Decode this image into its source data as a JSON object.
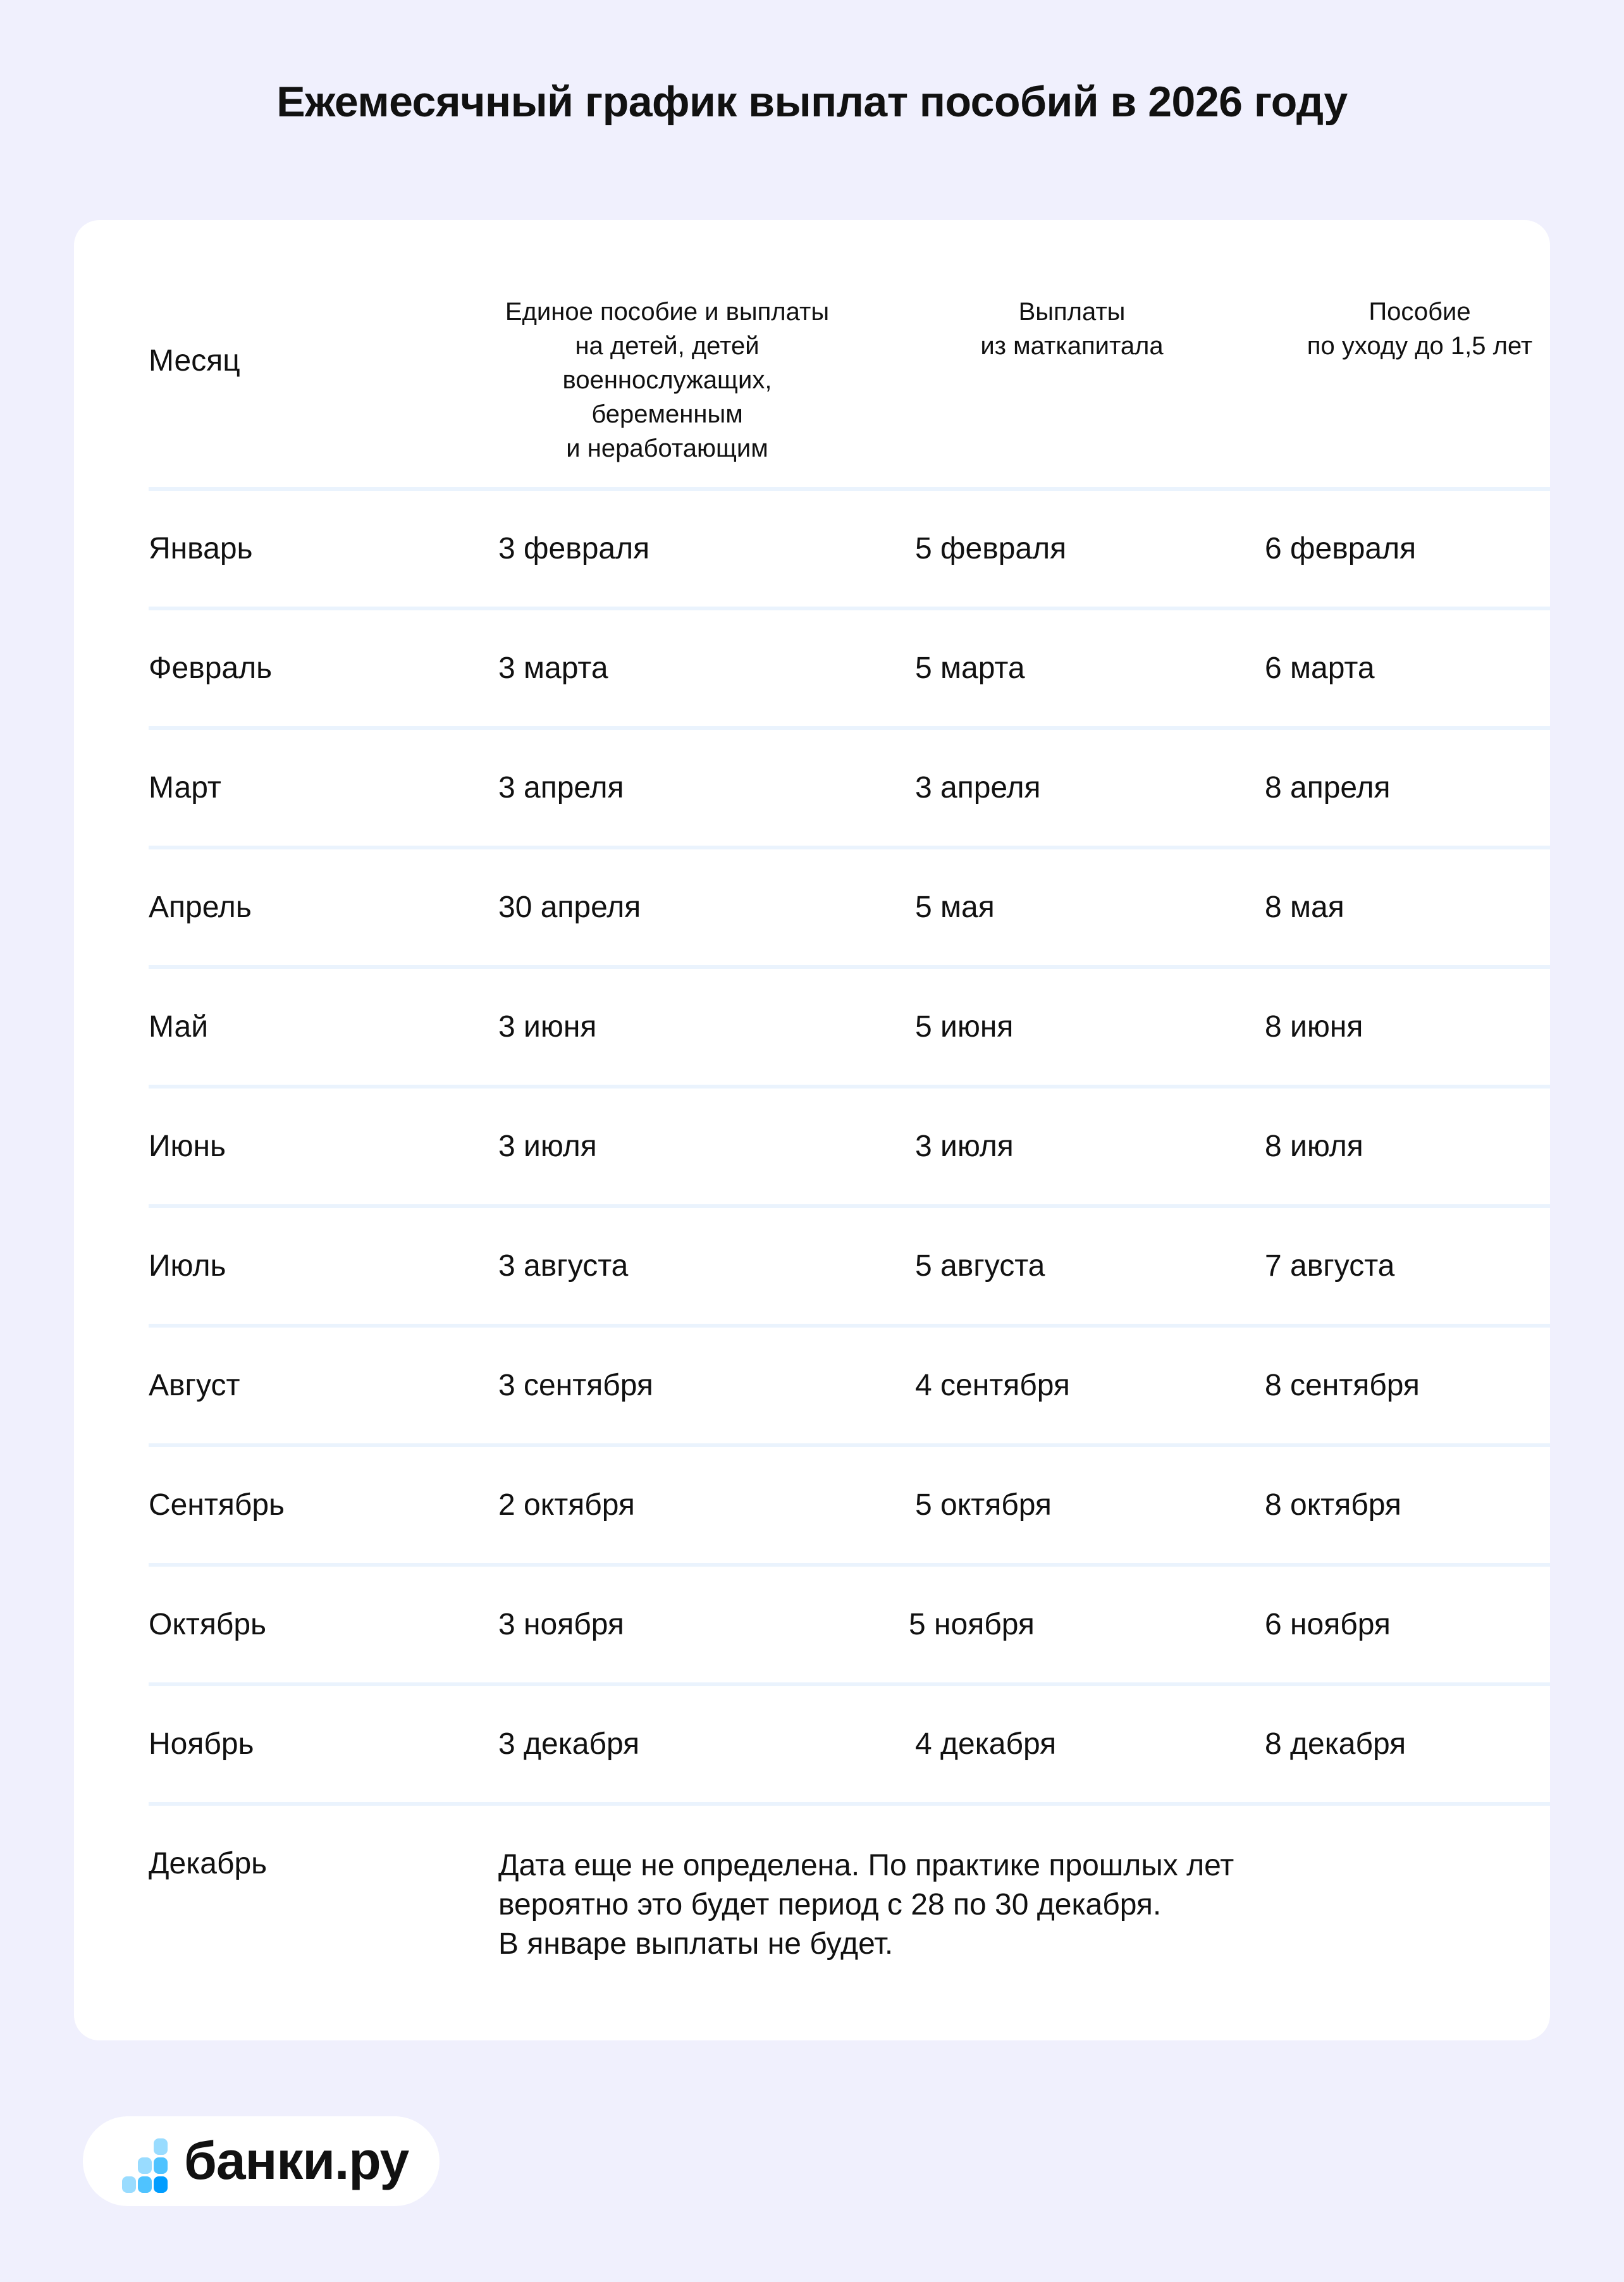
{
  "title": "Ежемесячный график выплат пособий в 2026 году",
  "table": {
    "headers": [
      "Месяц",
      "Единое пособие и выплаты\nна детей, детей\nвоеннослужащих,\nбеременным\nи неработающим",
      "Выплаты\nиз маткапитала",
      "Пособие\nпо уходу до 1,5 лет"
    ],
    "rows": [
      [
        "Январь",
        "3 февраля",
        "5 февраля",
        "6 февраля"
      ],
      [
        "Февраль",
        "3 марта",
        "5 марта",
        "6 марта"
      ],
      [
        "Март",
        "3 апреля",
        "3 апреля",
        "8 апреля"
      ],
      [
        "Апрель",
        "30 апреля",
        "5 мая",
        "8 мая"
      ],
      [
        "Май",
        "3 июня",
        "5 июня",
        "8 июня"
      ],
      [
        "Июнь",
        "3 июля",
        "3 июля",
        "8 июля"
      ],
      [
        "Июль",
        "3 августа",
        "5 августа",
        "7 августа"
      ],
      [
        "Август",
        "3 сентября",
        "4 сентября",
        "8 сентября"
      ],
      [
        "Сентябрь",
        "2 октября",
        "5 октября",
        "8 октября"
      ],
      [
        "Октябрь",
        "3 ноября",
        "5 ноября",
        "6 ноября"
      ],
      [
        "Ноябрь",
        "3 декабря",
        "4 декабря",
        "8 декабря"
      ]
    ],
    "december": {
      "month": "Декабрь",
      "note": "Дата еще не определена. По практике прошлых лет\nвероятно это будет период с 28 по 30 декабря.\nВ январе выплаты не будет."
    }
  },
  "logo": {
    "text": "банки.ру",
    "colors": [
      "#99dcff",
      "#4fc3ff",
      "#009dff"
    ]
  },
  "colors": {
    "background": "#f0f0fd",
    "divider": "#eaf3fd"
  }
}
